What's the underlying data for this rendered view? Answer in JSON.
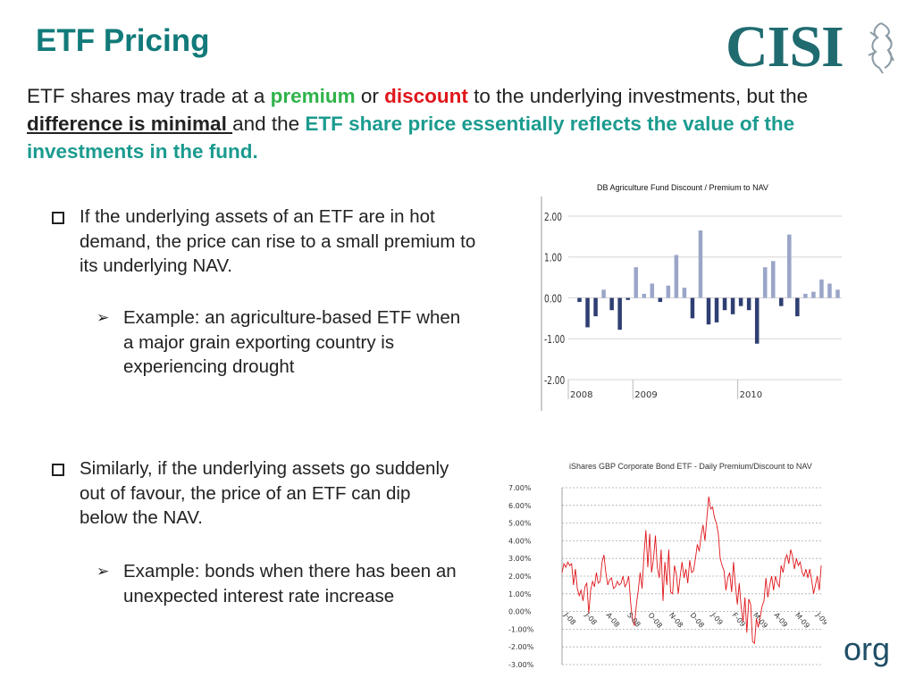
{
  "title": "ETF Pricing",
  "logo": {
    "text": "CISI",
    "icon": "griffin-icon"
  },
  "intro": {
    "p1": "ETF shares may trade at a ",
    "premium": "premium",
    "p2": " or ",
    "discount": "discount",
    "p3": " to the underlying investments, but the ",
    "minimal": "difference is minimal ",
    "p4": "and the ",
    "reflect": "ETF share price essentially reflects the value of the investments in the fund",
    "p5": "."
  },
  "bullets": [
    {
      "text": "If the underlying assets of an ETF are in hot demand, the price can rise to a small premium to its underlying NAV.",
      "sub": "Example: an agriculture-based ETF when a major grain exporting country is experiencing drought"
    },
    {
      "text": "Similarly, if the underlying assets go suddenly out of favour, the price of an ETF can dip below the NAV.",
      "sub": "Example: bonds when there has been an unexpected interest rate increase"
    }
  ],
  "footer_text": "org",
  "colors": {
    "title": "#127a7a",
    "premium": "#2fb34a",
    "discount": "#e0161b",
    "reflect": "#1b9b8f",
    "bar_pos": "#9aa5c8",
    "bar_neg": "#2f3f72",
    "line": "#e0161b"
  },
  "chart_data": [
    {
      "type": "bar",
      "title": "DB Agriculture Fund Discount / Premium to NAV",
      "ylim": [
        -2.0,
        2.0
      ],
      "yticks": [
        "2.00",
        "1.00",
        "0.00",
        "-1.00",
        "-2.00"
      ],
      "ytick_values": [
        2,
        1,
        0,
        -1,
        -2
      ],
      "xlabels": [
        "2008",
        "2009",
        "2010"
      ],
      "xlabel_index": [
        0,
        8,
        21
      ],
      "values": [
        -0.1,
        -0.72,
        -0.45,
        0.2,
        -0.3,
        -0.78,
        -0.05,
        0.75,
        0.1,
        0.35,
        -0.1,
        0.3,
        1.05,
        0.25,
        -0.5,
        1.65,
        -0.65,
        -0.6,
        -0.3,
        -0.4,
        -0.2,
        -0.3,
        -1.12,
        0.75,
        0.9,
        -0.2,
        1.55,
        -0.45,
        0.1,
        0.15,
        0.45,
        0.35,
        0.2
      ],
      "grid": true
    },
    {
      "type": "line",
      "title": "iShares GBP Corporate Bond ETF - Daily Premium/Discount to NAV",
      "ylim": [
        -3.0,
        7.0
      ],
      "yticks": [
        "7.00%",
        "6.00%",
        "5.00%",
        "4.00%",
        "3.00%",
        "2.00%",
        "1.00%",
        "0.00%",
        "-1.00%",
        "-2.00%",
        "-3.00%"
      ],
      "ytick_values": [
        7,
        6,
        5,
        4,
        3,
        2,
        1,
        0,
        -1,
        -2,
        -3
      ],
      "xlabels": [
        "J-08",
        "J-08",
        "A-08",
        "S-08",
        "O-08",
        "N-08",
        "D-08",
        "J-09",
        "F-09",
        "M-09",
        "A-09",
        "M-09",
        "J-09"
      ],
      "values": [
        2.2,
        2.7,
        2.5,
        2.8,
        2.6,
        2.7,
        1.5,
        2.4,
        1.3,
        0.9,
        1.2,
        0.6,
        1.4,
        1.6,
        -0.1,
        1.2,
        1.7,
        1.4,
        2.2,
        1.6,
        1.7,
        2.8,
        3.2,
        2.2,
        1.5,
        1.8,
        1.9,
        1.3,
        1.4,
        1.7,
        1.5,
        1.6,
        2.0,
        1.4,
        1.6,
        2.0,
        0.5,
        -0.5,
        -0.8,
        0.4,
        1.2,
        2.2,
        1.3,
        3.2,
        4.6,
        2.5,
        4.4,
        2.2,
        3.0,
        4.3,
        2.5,
        1.9,
        3.5,
        0.6,
        2.8,
        1.5,
        3.5,
        1.1,
        1.0,
        2.6,
        2.1,
        1.0,
        2.0,
        2.8,
        1.9,
        2.4,
        1.6,
        2.9,
        2.2,
        2.3,
        3.0,
        3.8,
        3.4,
        4.3,
        4.9,
        4.0,
        5.3,
        6.5,
        5.8,
        5.9,
        5.3,
        5.0,
        4.4,
        3.0,
        2.6,
        2.3,
        1.2,
        1.9,
        2.2,
        1.1,
        2.8,
        1.5,
        0.4,
        1.6,
        0.3,
        -0.6,
        0.8,
        -1.2,
        0.7,
        0.4,
        -1.7,
        -1.8,
        -0.4,
        -0.9,
        -0.3,
        0.3,
        0.6,
        1.9,
        0.8,
        1.5,
        2.0,
        1.2,
        2.0,
        1.6,
        1.4,
        2.6,
        2.2,
        2.9,
        3.2,
        2.7,
        3.5,
        3.1,
        2.4,
        3.0,
        2.6,
        2.8,
        2.2,
        2.0,
        2.4,
        1.9,
        2.4,
        1.8,
        1.0,
        1.5,
        2.0,
        1.2,
        2.6
      ],
      "grid": true
    }
  ]
}
